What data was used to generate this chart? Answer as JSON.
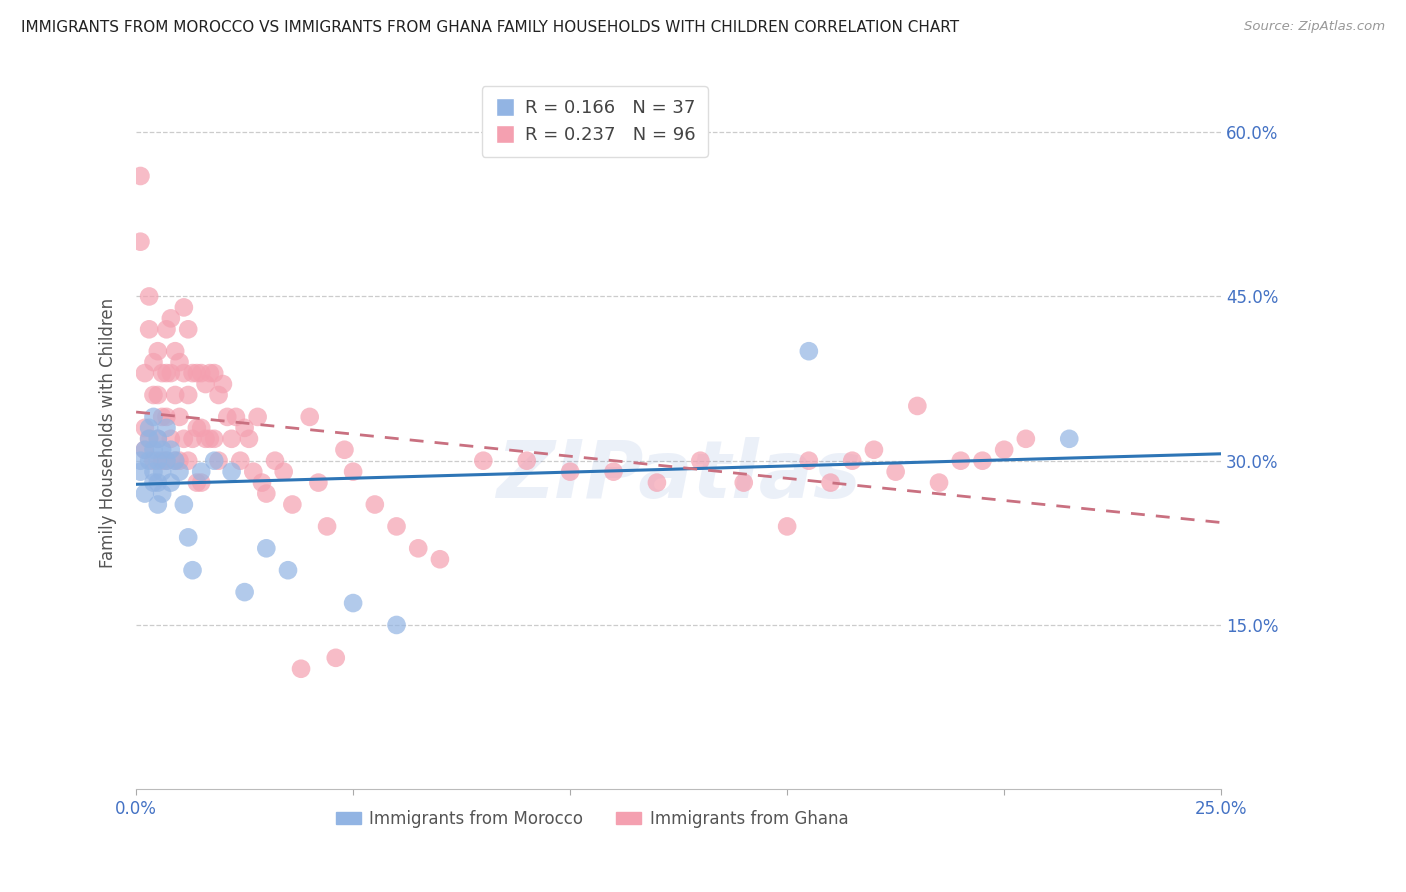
{
  "title": "IMMIGRANTS FROM MOROCCO VS IMMIGRANTS FROM GHANA FAMILY HOUSEHOLDS WITH CHILDREN CORRELATION CHART",
  "source": "Source: ZipAtlas.com",
  "ylabel": "Family Households with Children",
  "legend_labels": [
    "Immigrants from Morocco",
    "Immigrants from Ghana"
  ],
  "morocco_R": 0.166,
  "morocco_N": 37,
  "ghana_R": 0.237,
  "ghana_N": 96,
  "color_morocco": "#92b4e3",
  "color_ghana": "#f4a0b0",
  "color_morocco_line": "#2e75b6",
  "color_ghana_line": "#c97080",
  "xlim": [
    0.0,
    0.25
  ],
  "ylim": [
    0.0,
    0.65
  ],
  "yticks": [
    0.15,
    0.3,
    0.45,
    0.6
  ],
  "ytick_labels": [
    "15.0%",
    "30.0%",
    "45.0%",
    "60.0%"
  ],
  "xticks": [
    0.0,
    0.05,
    0.1,
    0.15,
    0.2,
    0.25
  ],
  "watermark": "ZIPatlas",
  "title_fontsize": 11,
  "axis_label_color": "#4472c4",
  "grid_color": "#cccccc",
  "background_color": "#ffffff",
  "morocco_x": [
    0.001,
    0.001,
    0.002,
    0.002,
    0.003,
    0.003,
    0.003,
    0.004,
    0.004,
    0.004,
    0.004,
    0.005,
    0.005,
    0.005,
    0.005,
    0.006,
    0.006,
    0.006,
    0.007,
    0.007,
    0.008,
    0.008,
    0.009,
    0.01,
    0.011,
    0.012,
    0.013,
    0.015,
    0.018,
    0.022,
    0.025,
    0.03,
    0.035,
    0.05,
    0.06,
    0.155,
    0.215
  ],
  "morocco_y": [
    0.29,
    0.3,
    0.31,
    0.27,
    0.33,
    0.32,
    0.3,
    0.34,
    0.31,
    0.29,
    0.28,
    0.32,
    0.3,
    0.28,
    0.26,
    0.31,
    0.29,
    0.27,
    0.33,
    0.3,
    0.31,
    0.28,
    0.3,
    0.29,
    0.26,
    0.23,
    0.2,
    0.29,
    0.3,
    0.29,
    0.18,
    0.22,
    0.2,
    0.17,
    0.15,
    0.4,
    0.32
  ],
  "ghana_x": [
    0.001,
    0.001,
    0.002,
    0.002,
    0.002,
    0.003,
    0.003,
    0.003,
    0.004,
    0.004,
    0.004,
    0.005,
    0.005,
    0.005,
    0.006,
    0.006,
    0.006,
    0.007,
    0.007,
    0.007,
    0.007,
    0.008,
    0.008,
    0.008,
    0.009,
    0.009,
    0.009,
    0.01,
    0.01,
    0.01,
    0.011,
    0.011,
    0.011,
    0.012,
    0.012,
    0.012,
    0.013,
    0.013,
    0.014,
    0.014,
    0.014,
    0.015,
    0.015,
    0.015,
    0.016,
    0.016,
    0.017,
    0.017,
    0.018,
    0.018,
    0.019,
    0.019,
    0.02,
    0.021,
    0.022,
    0.023,
    0.024,
    0.025,
    0.026,
    0.027,
    0.028,
    0.029,
    0.03,
    0.032,
    0.034,
    0.036,
    0.038,
    0.04,
    0.042,
    0.044,
    0.046,
    0.048,
    0.05,
    0.055,
    0.06,
    0.065,
    0.07,
    0.08,
    0.09,
    0.1,
    0.11,
    0.12,
    0.13,
    0.14,
    0.15,
    0.155,
    0.16,
    0.165,
    0.17,
    0.175,
    0.18,
    0.185,
    0.19,
    0.195,
    0.2,
    0.205
  ],
  "ghana_y": [
    0.56,
    0.5,
    0.38,
    0.33,
    0.31,
    0.45,
    0.42,
    0.32,
    0.39,
    0.36,
    0.3,
    0.4,
    0.36,
    0.32,
    0.38,
    0.34,
    0.3,
    0.42,
    0.38,
    0.34,
    0.3,
    0.43,
    0.38,
    0.32,
    0.4,
    0.36,
    0.3,
    0.39,
    0.34,
    0.3,
    0.44,
    0.38,
    0.32,
    0.42,
    0.36,
    0.3,
    0.38,
    0.32,
    0.38,
    0.33,
    0.28,
    0.38,
    0.33,
    0.28,
    0.37,
    0.32,
    0.38,
    0.32,
    0.38,
    0.32,
    0.36,
    0.3,
    0.37,
    0.34,
    0.32,
    0.34,
    0.3,
    0.33,
    0.32,
    0.29,
    0.34,
    0.28,
    0.27,
    0.3,
    0.29,
    0.26,
    0.11,
    0.34,
    0.28,
    0.24,
    0.12,
    0.31,
    0.29,
    0.26,
    0.24,
    0.22,
    0.21,
    0.3,
    0.3,
    0.29,
    0.29,
    0.28,
    0.3,
    0.28,
    0.24,
    0.3,
    0.28,
    0.3,
    0.31,
    0.29,
    0.35,
    0.28,
    0.3,
    0.3,
    0.31,
    0.32
  ]
}
